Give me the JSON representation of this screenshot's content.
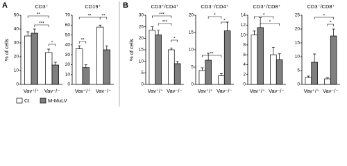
{
  "panels": [
    {
      "label": "A"
    },
    {
      "label": "B"
    }
  ],
  "chart_data": [
    {
      "type": "bar",
      "title": "CD3⁺",
      "ylabel": "% of cells",
      "categories": [
        "Vav⁺/⁺",
        "Vav⁻/⁻"
      ],
      "series": [
        {
          "name": "Ct",
          "color": "#ffffff",
          "values": [
            35,
            23
          ],
          "errors": [
            3,
            2.5
          ]
        },
        {
          "name": "M-MuLV",
          "color": "#7f7f7f",
          "values": [
            37,
            14
          ],
          "errors": [
            3,
            2
          ]
        }
      ],
      "ylim": [
        0,
        50
      ],
      "yticks": [
        0,
        10,
        20,
        30,
        40,
        50
      ],
      "annotations": [
        "**",
        "***",
        "*"
      ]
    },
    {
      "type": "bar",
      "title": "CD19⁺",
      "categories": [
        "Vav⁺/⁺",
        "Vav⁻/⁻"
      ],
      "series": [
        {
          "name": "Ct",
          "color": "#ffffff",
          "values": [
            36,
            58
          ],
          "errors": [
            3,
            2
          ]
        },
        {
          "name": "M-MuLV",
          "color": "#7f7f7f",
          "values": [
            17,
            35
          ],
          "errors": [
            3,
            4
          ]
        }
      ],
      "ylim": [
        0,
        70
      ],
      "yticks": [
        0,
        10,
        20,
        30,
        40,
        50,
        60,
        70
      ],
      "annotations": [
        "**",
        "**",
        "**"
      ]
    },
    {
      "type": "bar",
      "title": "CD3⁺/CD4⁺",
      "ylabel": "% of cells",
      "categories": [
        "Vav⁺/⁺",
        "Vav⁻/⁻"
      ],
      "series": [
        {
          "name": "Ct",
          "color": "#ffffff",
          "values": [
            23.5,
            15
          ],
          "errors": [
            1.5,
            0.8
          ]
        },
        {
          "name": "M-MuLV",
          "color": "#7f7f7f",
          "values": [
            21.5,
            9
          ],
          "errors": [
            2,
            1
          ]
        }
      ],
      "ylim": [
        0,
        30
      ],
      "yticks": [
        0,
        5,
        10,
        15,
        20,
        25,
        30
      ],
      "annotations": [
        "***",
        "***",
        "*"
      ]
    },
    {
      "type": "bar",
      "title": "CD3⁻/CD4⁺",
      "categories": [
        "Vav⁺/⁺",
        "Vav⁻/⁻"
      ],
      "series": [
        {
          "name": "Ct",
          "color": "#ffffff",
          "values": [
            4,
            2.5
          ],
          "errors": [
            0.8,
            0.6
          ]
        },
        {
          "name": "M-MuLV",
          "color": "#7f7f7f",
          "values": [
            7,
            15.5
          ],
          "errors": [
            2,
            2.5
          ]
        }
      ],
      "ylim": [
        0,
        20
      ],
      "yticks": [
        0,
        5,
        10,
        15,
        20
      ],
      "annotations": [
        "**",
        "*",
        "*"
      ]
    },
    {
      "type": "bar",
      "title": "CD3⁺/CD8⁺",
      "categories": [
        "Vav⁺/⁺",
        "Vav⁻/⁻"
      ],
      "series": [
        {
          "name": "Ct",
          "color": "#ffffff",
          "values": [
            10,
            6
          ],
          "errors": [
            0.8,
            1.5
          ]
        },
        {
          "name": "M-MuLV",
          "color": "#7f7f7f",
          "values": [
            11.5,
            5
          ],
          "errors": [
            2,
            1.2
          ]
        }
      ],
      "ylim": [
        0,
        14
      ],
      "yticks": [
        0,
        2,
        4,
        6,
        8,
        10,
        12,
        14
      ],
      "annotations": [
        "*",
        "*"
      ]
    },
    {
      "type": "bar",
      "title": "CD3⁻/CD8⁺",
      "categories": [
        "Vav⁺/⁺",
        "Vav⁻/⁻"
      ],
      "series": [
        {
          "name": "Ct",
          "color": "#ffffff",
          "values": [
            2.5,
            2
          ],
          "errors": [
            0.5,
            0.4
          ]
        },
        {
          "name": "M-MuLV",
          "color": "#7f7f7f",
          "values": [
            8,
            17.5
          ],
          "errors": [
            3,
            2.5
          ]
        }
      ],
      "ylim": [
        0,
        25
      ],
      "yticks": [
        0,
        5,
        10,
        15,
        20,
        25
      ],
      "annotations": [
        "*",
        "*"
      ]
    }
  ]
}
